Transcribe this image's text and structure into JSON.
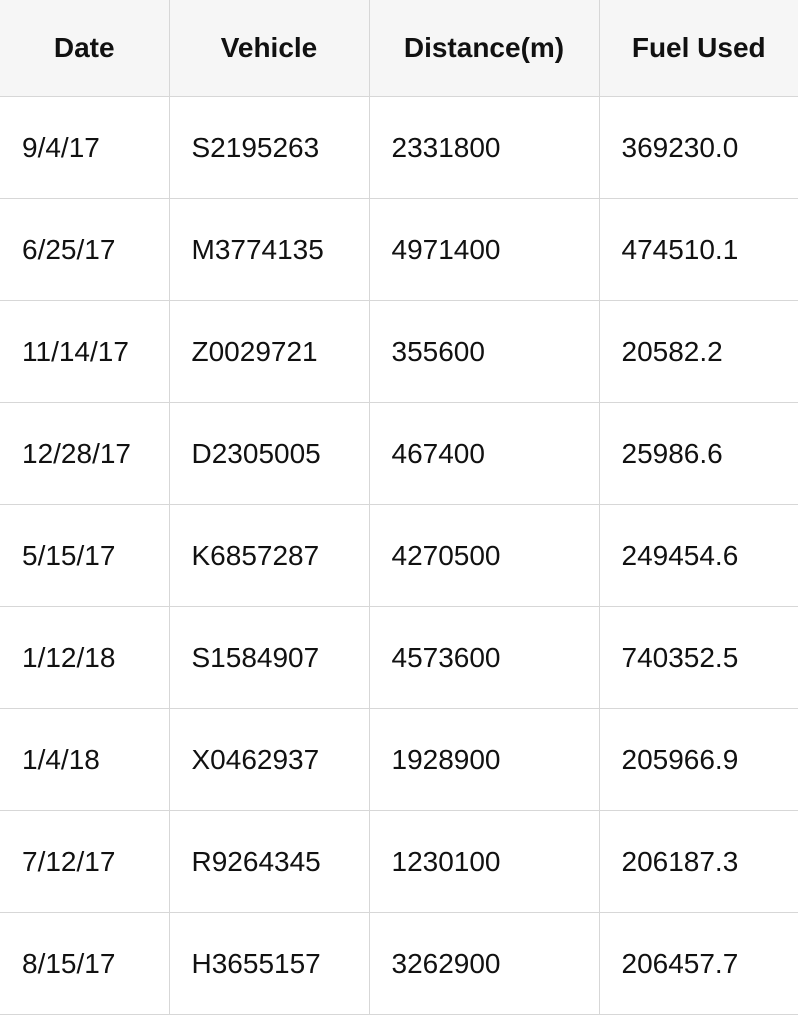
{
  "table": {
    "columns": [
      "Date",
      "Vehicle",
      "Distance(m)",
      "Fuel Used"
    ],
    "rows": [
      [
        "9/4/17",
        "S2195263",
        "2331800",
        "369230.0"
      ],
      [
        "6/25/17",
        "M3774135",
        "4971400",
        "474510.1"
      ],
      [
        "11/14/17",
        "Z0029721",
        "355600",
        "20582.2"
      ],
      [
        "12/28/17",
        "D2305005",
        "467400",
        "25986.6"
      ],
      [
        "5/15/17",
        "K6857287",
        "4270500",
        "249454.6"
      ],
      [
        "1/12/18",
        "S1584907",
        "4573600",
        "740352.5"
      ],
      [
        "1/4/18",
        "X0462937",
        "1928900",
        "205966.9"
      ],
      [
        "7/12/17",
        "R9264345",
        "1230100",
        "206187.3"
      ],
      [
        "8/15/17",
        "H3655157",
        "3262900",
        "206457.7"
      ]
    ]
  },
  "colors": {
    "header_background": "#f6f6f6",
    "grid_line": "#d7d7d7",
    "text": "#111111",
    "background": "#ffffff"
  }
}
